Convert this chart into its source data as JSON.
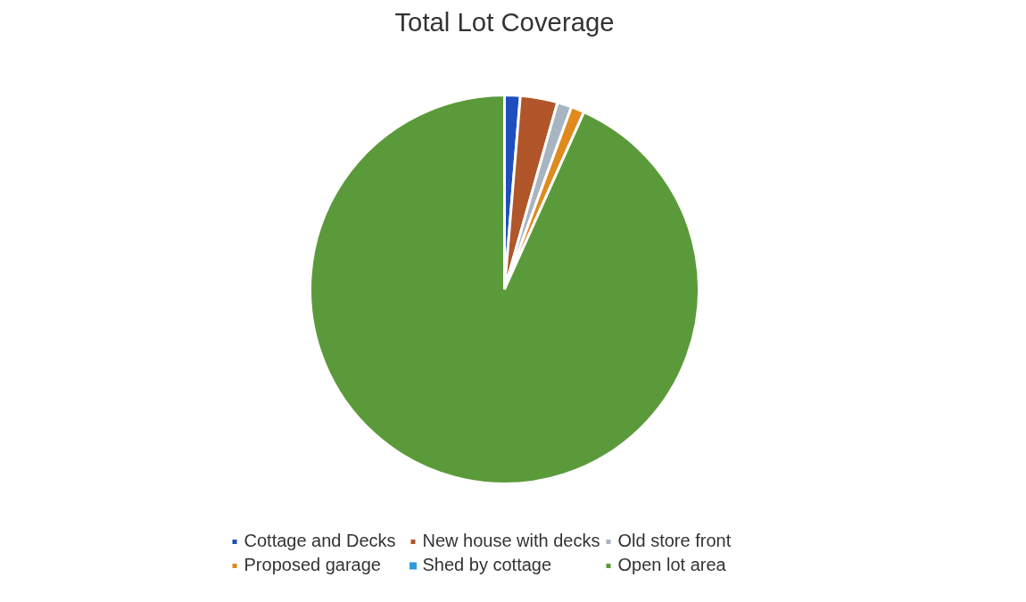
{
  "chart_data": {
    "type": "pie",
    "title": "Total Lot Coverage",
    "categories": [
      "Cottage and Decks",
      "New house with decks",
      "Old store front",
      "Proposed garage",
      "Shed by cottage",
      "Open lot area"
    ],
    "values": [
      1.3,
      3.1,
      1.2,
      1.1,
      null,
      93.3
    ],
    "colors": [
      "#1f4fbf",
      "#b0562a",
      "#a9b4c2",
      "#e08a1e",
      "#2f9ad8",
      "#5b9a3a"
    ],
    "legend": "bottom"
  }
}
